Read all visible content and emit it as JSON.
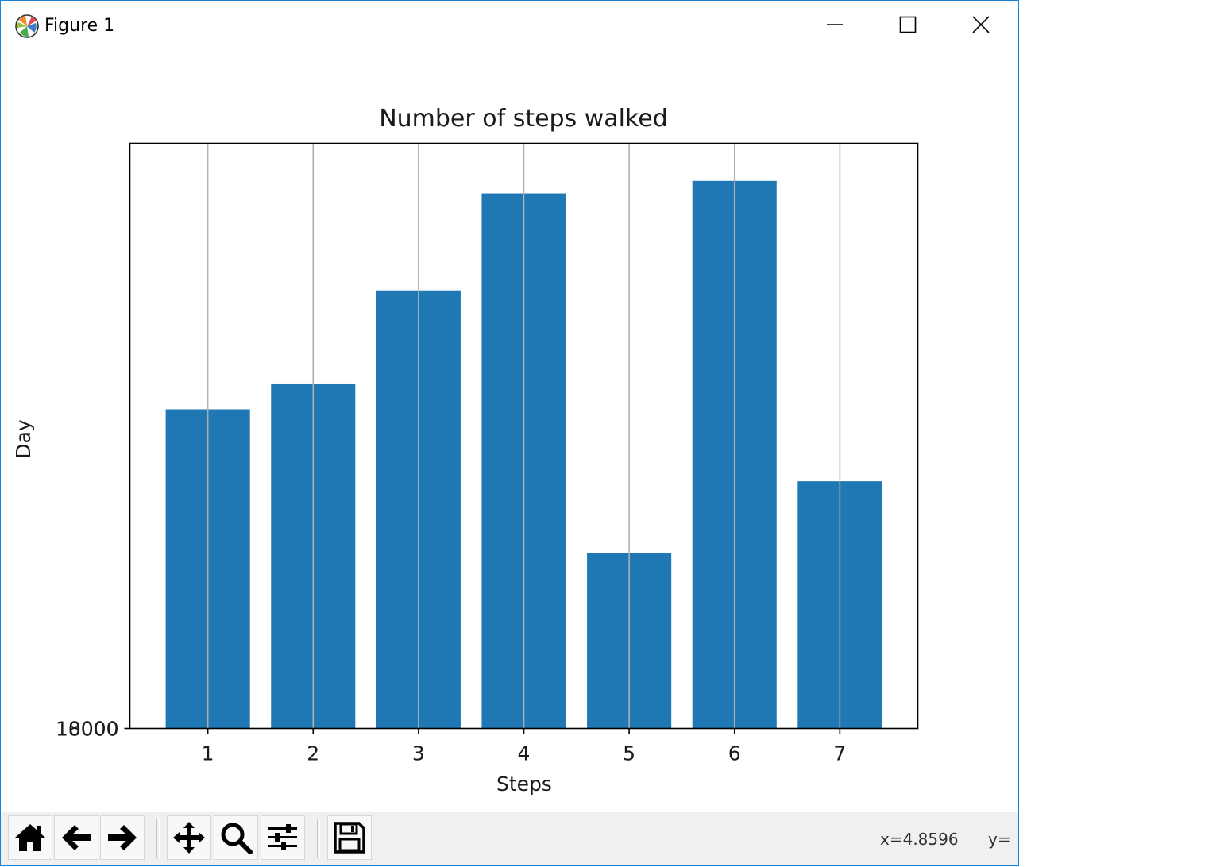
{
  "window": {
    "title": "Figure 1"
  },
  "chart_data": {
    "type": "bar",
    "title": "Number of steps walked",
    "xlabel": "Steps",
    "ylabel": "Day",
    "categories": [
      "1",
      "2",
      "3",
      "4",
      "5",
      "6",
      "7"
    ],
    "x": [
      1,
      2,
      3,
      4,
      5,
      6,
      7
    ],
    "values": [
      10200,
      11000,
      14000,
      17100,
      5600,
      17500,
      7900
    ],
    "ylim": [
      0,
      18700
    ],
    "bar_color": "#1f77b4",
    "grid": "x-axis vertical lines",
    "y_tick_labels": [
      "10000",
      "8000"
    ]
  },
  "toolbar": {
    "coord_x": "x=4.8596",
    "coord_y": "y="
  }
}
